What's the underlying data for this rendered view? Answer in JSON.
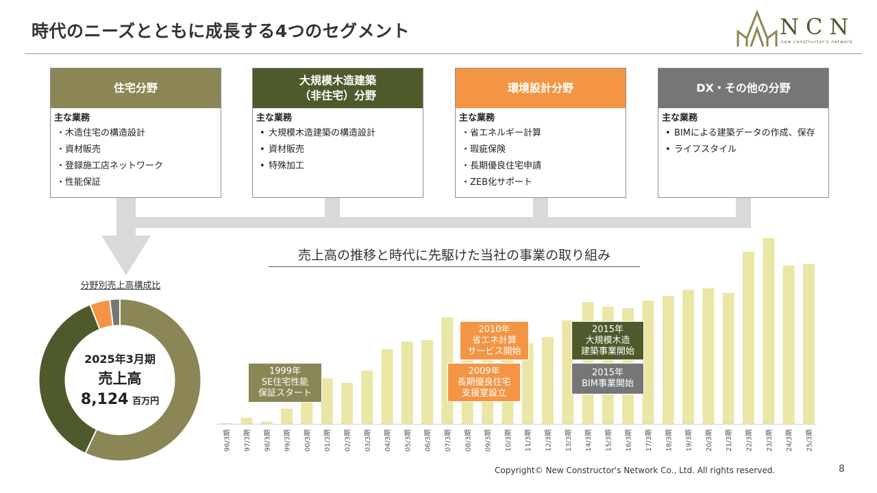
{
  "header": {
    "title": "時代のニーズとともに成長する4つのセグメント",
    "logo_text": "NCN",
    "logo_sub": "new constructor's network"
  },
  "segments": [
    {
      "title": "住宅分野",
      "color": "#8b8655",
      "label": "主な業務",
      "style": "dot",
      "items": [
        "木造住宅の構造設計",
        "資材販売",
        "登録施工店ネットワーク",
        "性能保証"
      ]
    },
    {
      "title": "大規模木造建築\n（非住宅）分野",
      "color": "#4f5a2c",
      "label": "主な業務",
      "style": "bul",
      "items": [
        "大規模木造建築の構造設計",
        "資材販売",
        "特殊加工"
      ]
    },
    {
      "title": "環境設計分野",
      "color": "#f39545",
      "label": "主な業務",
      "style": "dot",
      "items": [
        "省エネルギー計算",
        "瑕疵保険",
        "長期優良住宅申請",
        "ZEB化サポート"
      ]
    },
    {
      "title": "DX・その他の分野",
      "color": "#767676",
      "label": "主な業務",
      "style": "bul",
      "items": [
        "BIMによる建築データの作成、保存",
        "ライフスタイル"
      ]
    }
  ],
  "donut": {
    "caption": "分野別売上高構成比",
    "period": "2025年3月期",
    "label": "売上高",
    "value": "8,124",
    "unit": "百万円"
  },
  "timeline": {
    "title": "売上高の推移と時代に先駆けた当社の事業の取り組み"
  },
  "callouts": [
    {
      "text": "1999年\nSE住宅性能\n保証スタート",
      "color": "#8b8655"
    },
    {
      "text": "2010年\n省エネ計算\nサービス開始",
      "color": "#f39545"
    },
    {
      "text": "2009年\n長期優良住宅\n支援室設立",
      "color": "#f39545"
    },
    {
      "text": "2015年\n大規模木造\n建築事業開始",
      "color": "#4f5a2c"
    },
    {
      "text": "2015年\nBIM事業開始",
      "color": "#767676"
    }
  ],
  "footer": {
    "copyright": "Copyright© New Constructor's Network Co., Ltd. All rights reserved.",
    "page": "8"
  },
  "chart_data": [
    {
      "type": "bar",
      "categories": [
        "96/3期",
        "97/3期",
        "98/3期",
        "99/3期",
        "00/3期",
        "01/3期",
        "02/3期",
        "03/3期",
        "04/3期",
        "05/3期",
        "06/3期",
        "07/3期",
        "08/3期",
        "09/3期",
        "10/3期",
        "11/3期",
        "12/3期",
        "13/3期",
        "14/3期",
        "15/3期",
        "16/3期",
        "17/3期",
        "18/3期",
        "19/3期",
        "20/3期",
        "21/3期",
        "22/3期",
        "23/3期",
        "24/3期",
        "25/3期"
      ],
      "values": [
        0.5,
        4,
        1.5,
        10,
        18,
        30,
        27,
        35,
        49,
        54,
        55,
        70,
        47,
        46,
        53,
        53,
        57,
        68,
        80,
        77,
        76,
        81,
        84,
        88,
        89,
        86,
        113,
        122,
        104,
        105
      ],
      "ylim": [
        0,
        125
      ],
      "grid": false,
      "color": "#eae7a6"
    },
    {
      "type": "pie",
      "categories": [
        "住宅分野",
        "大規模木造建築（非住宅）分野",
        "環境設計分野",
        "DX・その他の分野"
      ],
      "values": [
        57,
        37,
        4,
        2
      ],
      "colors": [
        "#8b8655",
        "#4f5a2c",
        "#f39545",
        "#767676"
      ],
      "donut": true
    }
  ]
}
